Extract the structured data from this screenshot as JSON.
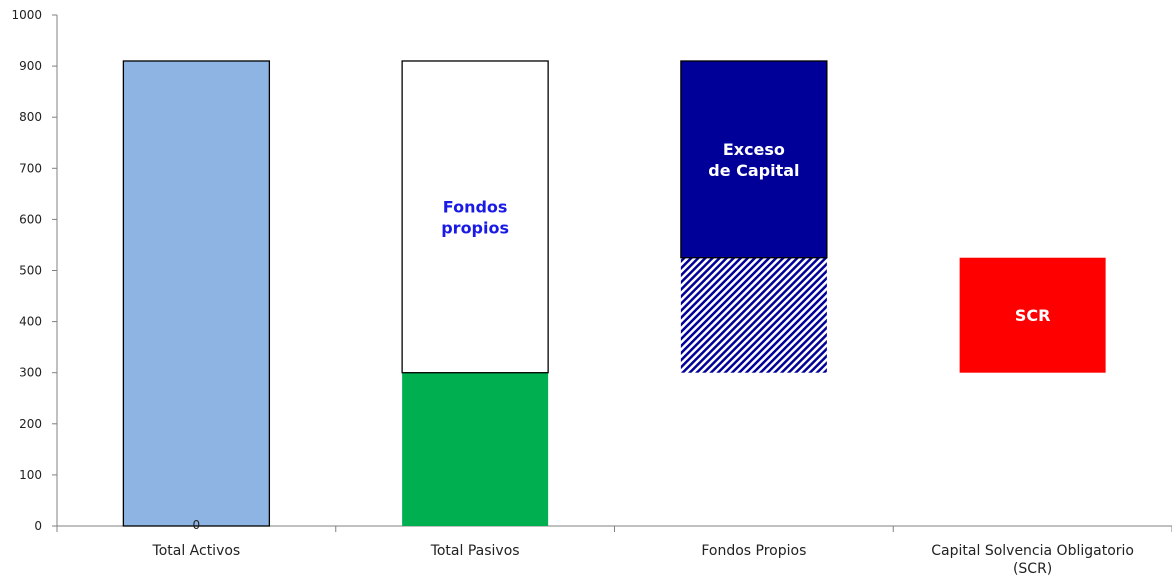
{
  "chart_data": {
    "type": "bar",
    "stacked": true,
    "title": "",
    "xlabel": "",
    "ylabel": "",
    "ylim": [
      0,
      1000
    ],
    "yticks": [
      0,
      100,
      200,
      300,
      400,
      500,
      600,
      700,
      800,
      900,
      1000
    ],
    "grid": false,
    "legend": "none",
    "categories": [
      "Total Activos",
      "Total Pasivos",
      "Fondos Propios",
      [
        "Capital Solvencia Obligatorio",
        "(SCR)"
      ]
    ],
    "segments": [
      {
        "category_index": 0,
        "from": 0,
        "to": 910,
        "fill": "#8DB4E2",
        "stroke": "#000000",
        "pattern": "solid",
        "label": ""
      },
      {
        "category_index": 1,
        "from": 0,
        "to": 300,
        "fill": "#00B050",
        "stroke": "none",
        "pattern": "solid",
        "label": ""
      },
      {
        "category_index": 1,
        "from": 300,
        "to": 910,
        "fill": "#FFFFFF",
        "stroke": "#000000",
        "pattern": "solid",
        "label": [
          "Fondos",
          "propios"
        ],
        "label_color": "#1A1AE6"
      },
      {
        "category_index": 2,
        "from": 300,
        "to": 525,
        "fill": "#000099",
        "stroke": "none",
        "pattern": "diagonal-stripes",
        "label": ""
      },
      {
        "category_index": 2,
        "from": 525,
        "to": 910,
        "fill": "#000099",
        "stroke": "#000000",
        "pattern": "solid",
        "label": [
          "Exceso",
          "de Capital"
        ],
        "label_color": "#FFFFFF"
      },
      {
        "category_index": 3,
        "from": 300,
        "to": 525,
        "fill": "#FF0000",
        "stroke": "none",
        "pattern": "solid",
        "label": [
          "SCR"
        ],
        "label_color": "#FFFFFF"
      }
    ],
    "annotations": [
      {
        "category_index": 0,
        "value": 0,
        "text": "0"
      }
    ]
  }
}
